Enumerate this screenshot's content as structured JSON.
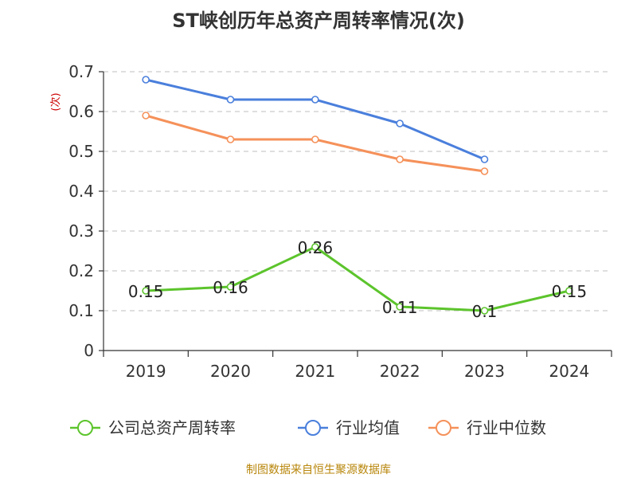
{
  "chart_data": {
    "type": "line",
    "title": "ST峡创历年总资产周转率情况(次)",
    "ylabel": "(次)",
    "xlabel": "",
    "categories": [
      "2019",
      "2020",
      "2021",
      "2022",
      "2023",
      "2024"
    ],
    "ylim": [
      0,
      0.7
    ],
    "yticks": [
      "0",
      "0.1",
      "0.2",
      "0.3",
      "0.4",
      "0.5",
      "0.6",
      "0.7"
    ],
    "grid": true,
    "legend_position": "bottom",
    "series": [
      {
        "name": "公司总资产周转率",
        "color": "#5cc42c",
        "values": [
          0.15,
          0.16,
          0.26,
          0.11,
          0.1,
          0.15
        ],
        "labels": [
          "0.15",
          "0.16",
          "0.26",
          "0.11",
          "0.1",
          "0.15"
        ]
      },
      {
        "name": "行业均值",
        "color": "#4a7fdc",
        "values": [
          0.68,
          0.63,
          0.63,
          0.57,
          0.48,
          null
        ]
      },
      {
        "name": "行业中位数",
        "color": "#f5915a",
        "values": [
          0.59,
          0.53,
          0.53,
          0.48,
          0.45,
          null
        ]
      }
    ],
    "source": "制图数据来自恒生聚源数据库"
  }
}
